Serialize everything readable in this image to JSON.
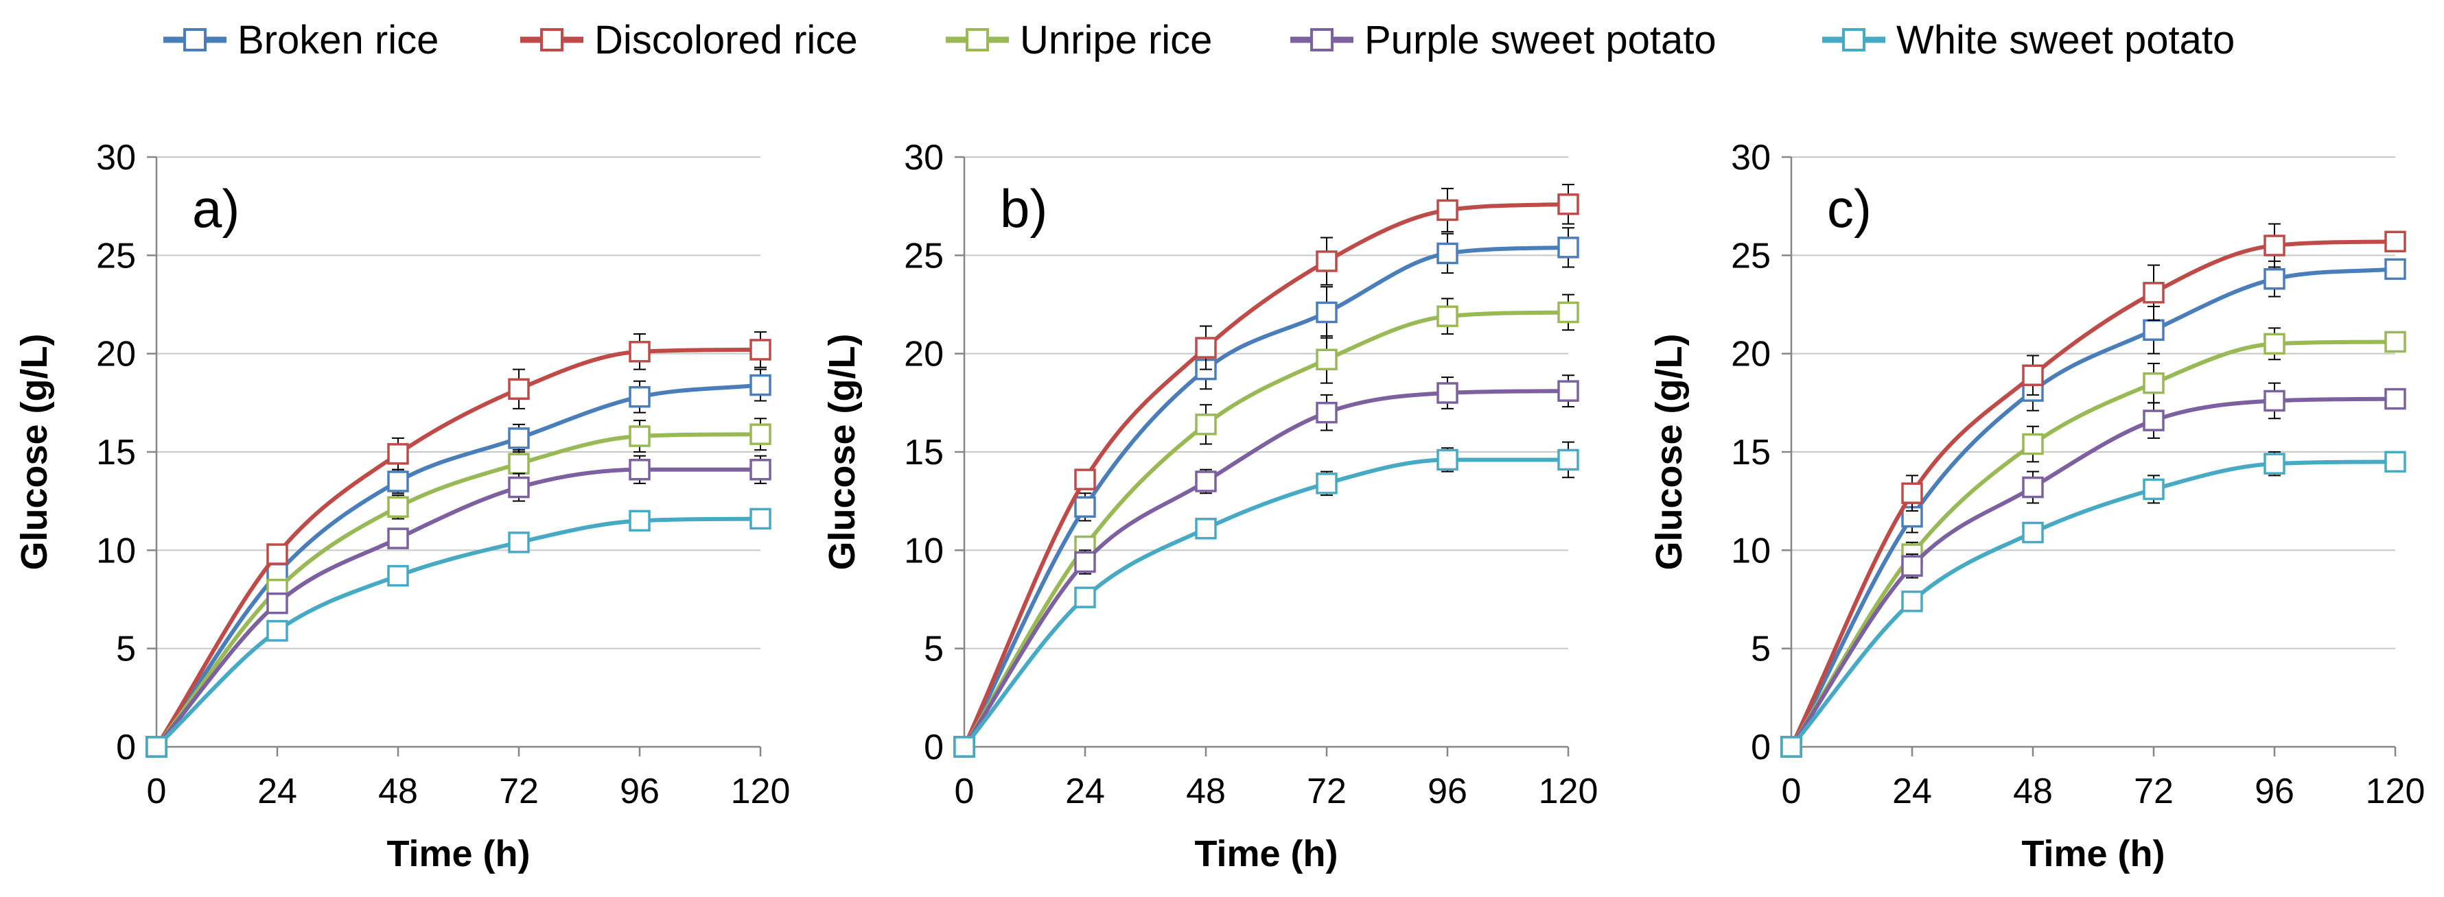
{
  "legend": [
    {
      "name": "Broken rice",
      "color": "#4a7ebb"
    },
    {
      "name": "Discolored rice",
      "color": "#be4b48"
    },
    {
      "name": "Unripe rice",
      "color": "#98b954"
    },
    {
      "name": "Purple sweet potato",
      "color": "#7d60a0"
    },
    {
      "name": "White sweet potato",
      "color": "#46aac5"
    }
  ],
  "chart_data": [
    {
      "type": "line",
      "panel_label": "a)",
      "xlabel": "Time (h)",
      "ylabel": "Glucose (g/L)",
      "x": [
        0,
        24,
        48,
        72,
        96,
        120
      ],
      "xticks": [
        "0",
        "24",
        "48",
        "72",
        "96",
        "120"
      ],
      "yticks": [
        "0",
        "5",
        "10",
        "15",
        "20",
        "25",
        "30"
      ],
      "ylim": [
        0,
        30
      ],
      "grid": true,
      "series": [
        {
          "name": "Broken rice",
          "values": [
            0,
            8.8,
            13.5,
            15.7,
            17.8,
            18.4
          ],
          "errors": [
            0,
            0.5,
            0.6,
            0.7,
            0.8,
            0.8
          ]
        },
        {
          "name": "Discolored rice",
          "values": [
            0,
            9.8,
            14.9,
            18.2,
            20.1,
            20.2
          ],
          "errors": [
            0,
            0.5,
            0.8,
            1.0,
            0.9,
            0.9
          ]
        },
        {
          "name": "Unripe rice",
          "values": [
            0,
            8.0,
            12.2,
            14.4,
            15.8,
            15.9
          ],
          "errors": [
            0,
            0.4,
            0.6,
            0.7,
            0.8,
            0.8
          ]
        },
        {
          "name": "Purple sweet potato",
          "values": [
            0,
            7.3,
            10.6,
            13.2,
            14.1,
            14.1
          ],
          "errors": [
            0,
            0.4,
            0.5,
            0.7,
            0.7,
            0.7
          ]
        },
        {
          "name": "White sweet potato",
          "values": [
            0,
            5.9,
            8.7,
            10.4,
            11.5,
            11.6
          ],
          "errors": [
            0,
            0.3,
            0.3,
            0.4,
            0.5,
            0.5
          ]
        }
      ]
    },
    {
      "type": "line",
      "panel_label": "b)",
      "xlabel": "Time (h)",
      "ylabel": "Glucose (g/L)",
      "x": [
        0,
        24,
        48,
        72,
        96,
        120
      ],
      "xticks": [
        "0",
        "24",
        "48",
        "72",
        "96",
        "120"
      ],
      "yticks": [
        "0",
        "5",
        "10",
        "15",
        "20",
        "25",
        "30"
      ],
      "ylim": [
        0,
        30
      ],
      "grid": true,
      "series": [
        {
          "name": "Broken rice",
          "values": [
            0,
            12.2,
            19.2,
            22.1,
            25.1,
            25.4
          ],
          "errors": [
            0,
            0.7,
            1.0,
            1.3,
            1.0,
            1.0
          ]
        },
        {
          "name": "Discolored rice",
          "values": [
            0,
            13.6,
            20.3,
            24.7,
            27.3,
            27.6
          ],
          "errors": [
            0,
            0.5,
            1.1,
            1.2,
            1.1,
            1.0
          ]
        },
        {
          "name": "Unripe rice",
          "values": [
            0,
            10.2,
            16.4,
            19.7,
            21.9,
            22.1
          ],
          "errors": [
            0,
            0.5,
            1.0,
            1.2,
            0.9,
            0.9
          ]
        },
        {
          "name": "Purple sweet potato",
          "values": [
            0,
            9.4,
            13.5,
            17.0,
            18.0,
            18.1
          ],
          "errors": [
            0,
            0.6,
            0.6,
            0.9,
            0.8,
            0.8
          ]
        },
        {
          "name": "White sweet potato",
          "values": [
            0,
            7.6,
            11.1,
            13.4,
            14.6,
            14.6
          ],
          "errors": [
            0,
            0.3,
            0.5,
            0.6,
            0.6,
            0.9
          ]
        }
      ]
    },
    {
      "type": "line",
      "panel_label": "c)",
      "xlabel": "Time (h)",
      "ylabel": "Glucose (g/L)",
      "x": [
        0,
        24,
        48,
        72,
        96,
        120
      ],
      "xticks": [
        "0",
        "24",
        "48",
        "72",
        "96",
        "120"
      ],
      "yticks": [
        "0",
        "5",
        "10",
        "15",
        "20",
        "25",
        "30"
      ],
      "ylim": [
        0,
        30
      ],
      "grid": true,
      "series": [
        {
          "name": "Broken rice",
          "values": [
            0,
            11.7,
            18.1,
            21.2,
            23.8,
            24.3
          ],
          "errors": [
            0,
            0.8,
            1.0,
            1.2,
            0.9,
            0.5
          ]
        },
        {
          "name": "Discolored rice",
          "values": [
            0,
            12.9,
            18.9,
            23.1,
            25.5,
            25.7
          ],
          "errors": [
            0,
            0.9,
            1.0,
            1.4,
            1.1,
            0.5
          ]
        },
        {
          "name": "Unripe rice",
          "values": [
            0,
            9.8,
            15.4,
            18.5,
            20.5,
            20.6
          ],
          "errors": [
            0,
            0.6,
            0.9,
            1.0,
            0.8,
            0.5
          ]
        },
        {
          "name": "Purple sweet potato",
          "values": [
            0,
            9.2,
            13.2,
            16.6,
            17.6,
            17.7
          ],
          "errors": [
            0,
            0.6,
            0.8,
            0.9,
            0.9,
            0.5
          ]
        },
        {
          "name": "White sweet potato",
          "values": [
            0,
            7.4,
            10.9,
            13.1,
            14.4,
            14.5
          ],
          "errors": [
            0,
            0.4,
            0.5,
            0.7,
            0.6,
            0.5
          ]
        }
      ]
    }
  ]
}
